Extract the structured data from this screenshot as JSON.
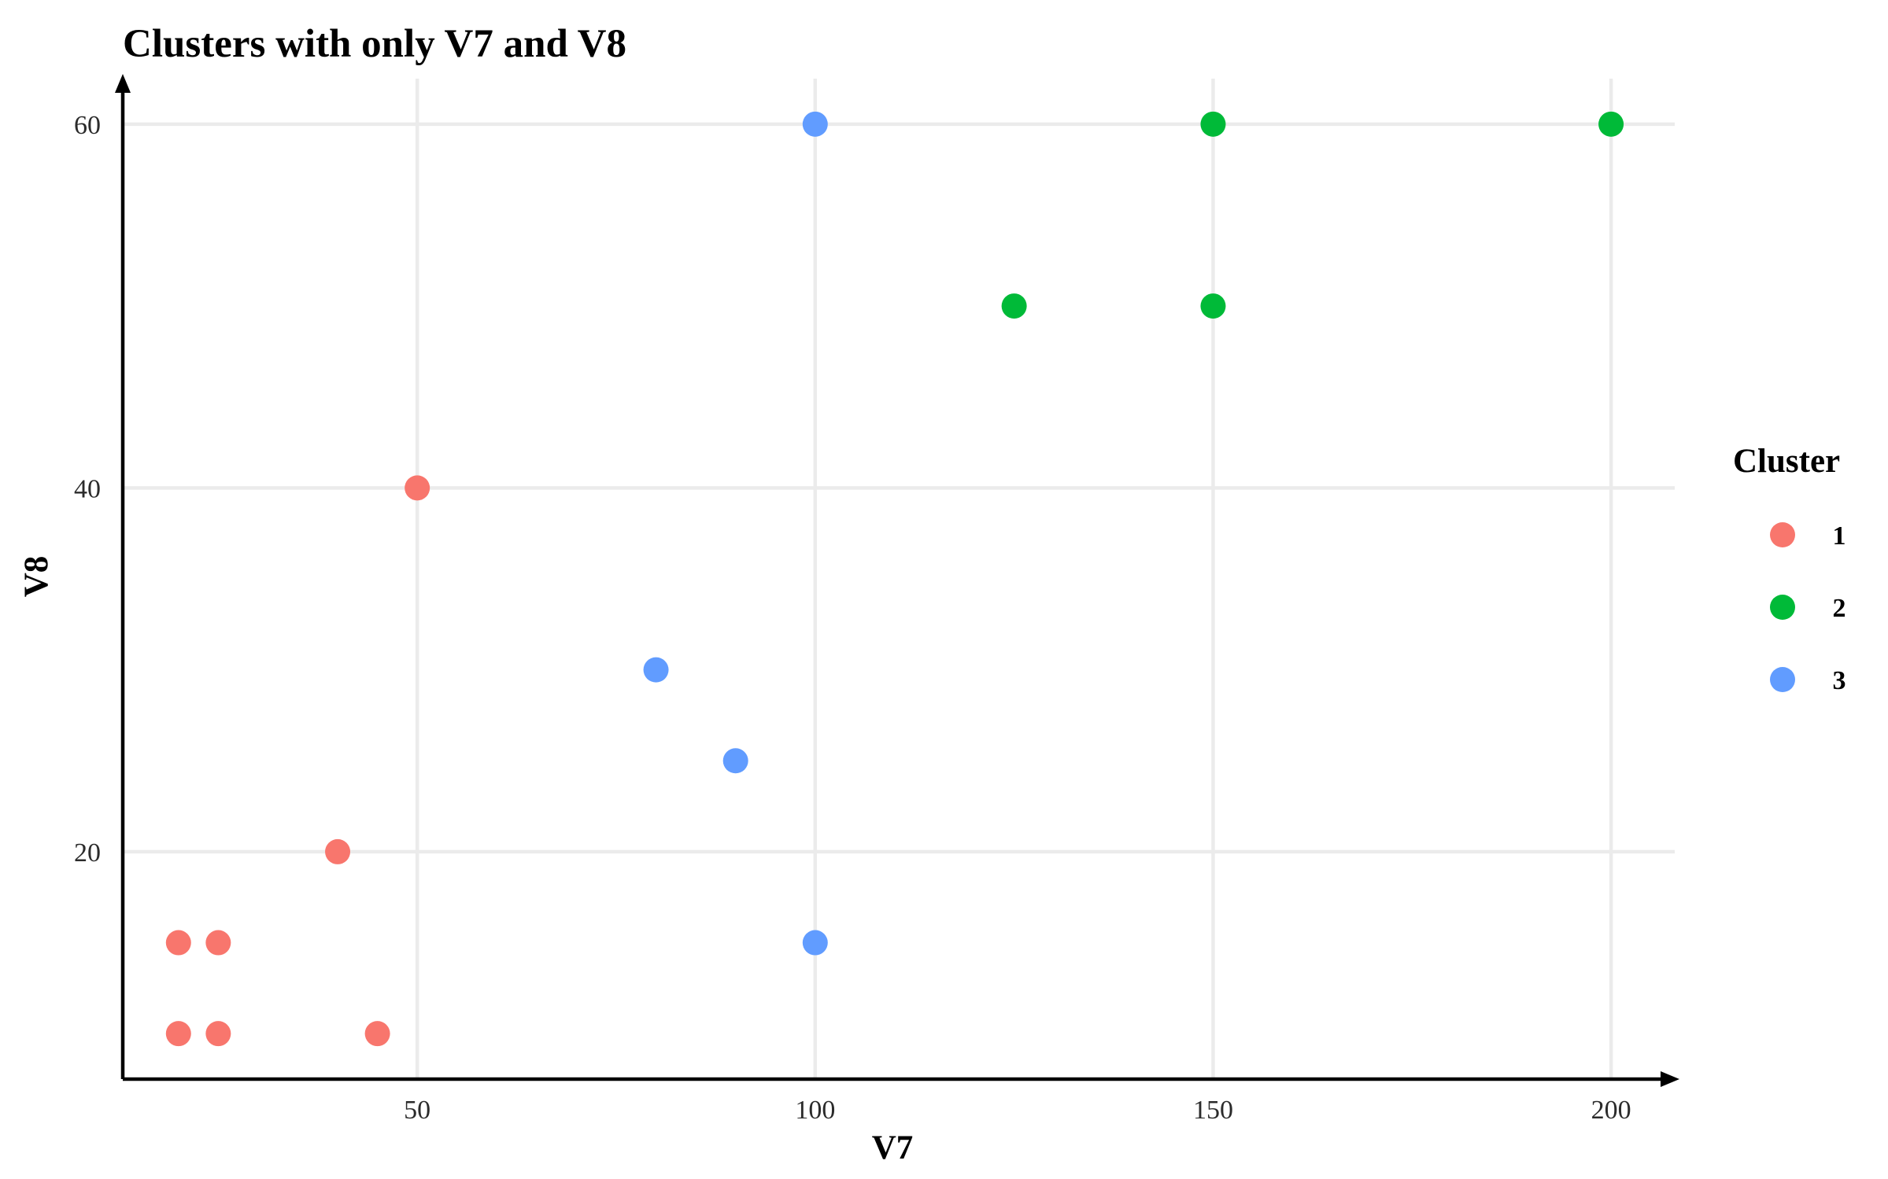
{
  "chart_data": {
    "type": "scatter",
    "title": "Clusters with only V7 and V8",
    "xlabel": "V7",
    "ylabel": "V8",
    "xlim": [
      13,
      208
    ],
    "ylim": [
      7.5,
      62.5
    ],
    "x_ticks": [
      50,
      100,
      150,
      200
    ],
    "y_ticks": [
      20,
      40,
      60
    ],
    "grid": true,
    "legend": {
      "title": "Cluster",
      "position": "right"
    },
    "series": [
      {
        "name": "1",
        "color": "#F8766D",
        "points": [
          {
            "x": 20,
            "y": 15
          },
          {
            "x": 25,
            "y": 15
          },
          {
            "x": 20,
            "y": 10
          },
          {
            "x": 25,
            "y": 10
          },
          {
            "x": 45,
            "y": 10
          },
          {
            "x": 40,
            "y": 20
          },
          {
            "x": 50,
            "y": 40
          }
        ]
      },
      {
        "name": "2",
        "color": "#00BA38",
        "points": [
          {
            "x": 150,
            "y": 60
          },
          {
            "x": 200,
            "y": 60
          },
          {
            "x": 125,
            "y": 50
          },
          {
            "x": 150,
            "y": 50
          }
        ]
      },
      {
        "name": "3",
        "color": "#619CFF",
        "points": [
          {
            "x": 100,
            "y": 60
          },
          {
            "x": 80,
            "y": 30
          },
          {
            "x": 90,
            "y": 25
          },
          {
            "x": 100,
            "y": 15
          }
        ]
      }
    ]
  }
}
